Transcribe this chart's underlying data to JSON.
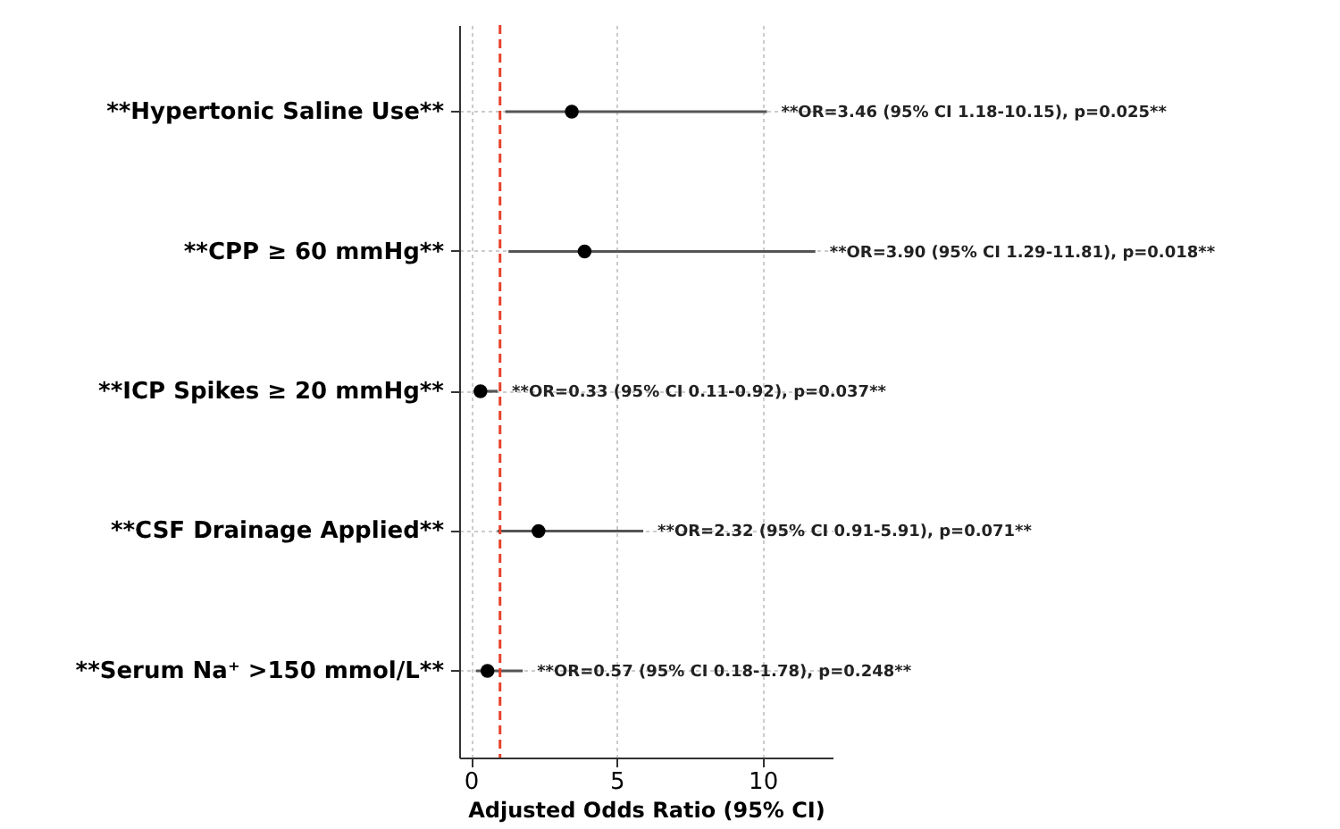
{
  "chart_data": {
    "type": "scatter",
    "orientation": "horizontal",
    "xlabel": "Adjusted Odds Ratio (95% CI)",
    "categories": [
      "**Hypertonic Saline Use**",
      "**CPP ≥ 60 mmHg**",
      "**ICP Spikes ≥ 20 mmHg**",
      "**CSF Drainage Applied**",
      "**Serum Na⁺ >150 mmol/L**"
    ],
    "series": [
      {
        "color": "#000000",
        "values": [
          3.46,
          3.9,
          0.33,
          2.32,
          0.57
        ],
        "errors": [
          [
            1.18,
            10.15
          ],
          [
            1.29,
            11.81
          ],
          [
            0.11,
            0.92
          ],
          [
            0.91,
            5.91
          ],
          [
            0.18,
            1.78
          ]
        ]
      }
    ],
    "xlim": [
      -0.4,
      12.4
    ],
    "xticks": [
      0,
      5,
      10
    ],
    "grid": true,
    "marker": "circle",
    "ref_lines": [
      {
        "axis": "x",
        "value": 1,
        "color": "#e8412a",
        "line_style": "dashed"
      }
    ],
    "annotations": [
      "**OR=3.46 (95% CI 1.18-10.15), p=0.025**",
      "**OR=3.90 (95% CI 1.29-11.81), p=0.018**",
      "**OR=0.33 (95% CI 0.11-0.92), p=0.037**",
      "**OR=2.32 (95% CI 0.91-5.91), p=0.071**",
      "**OR=0.57 (95% CI 0.18-1.78), p=0.248**"
    ]
  }
}
